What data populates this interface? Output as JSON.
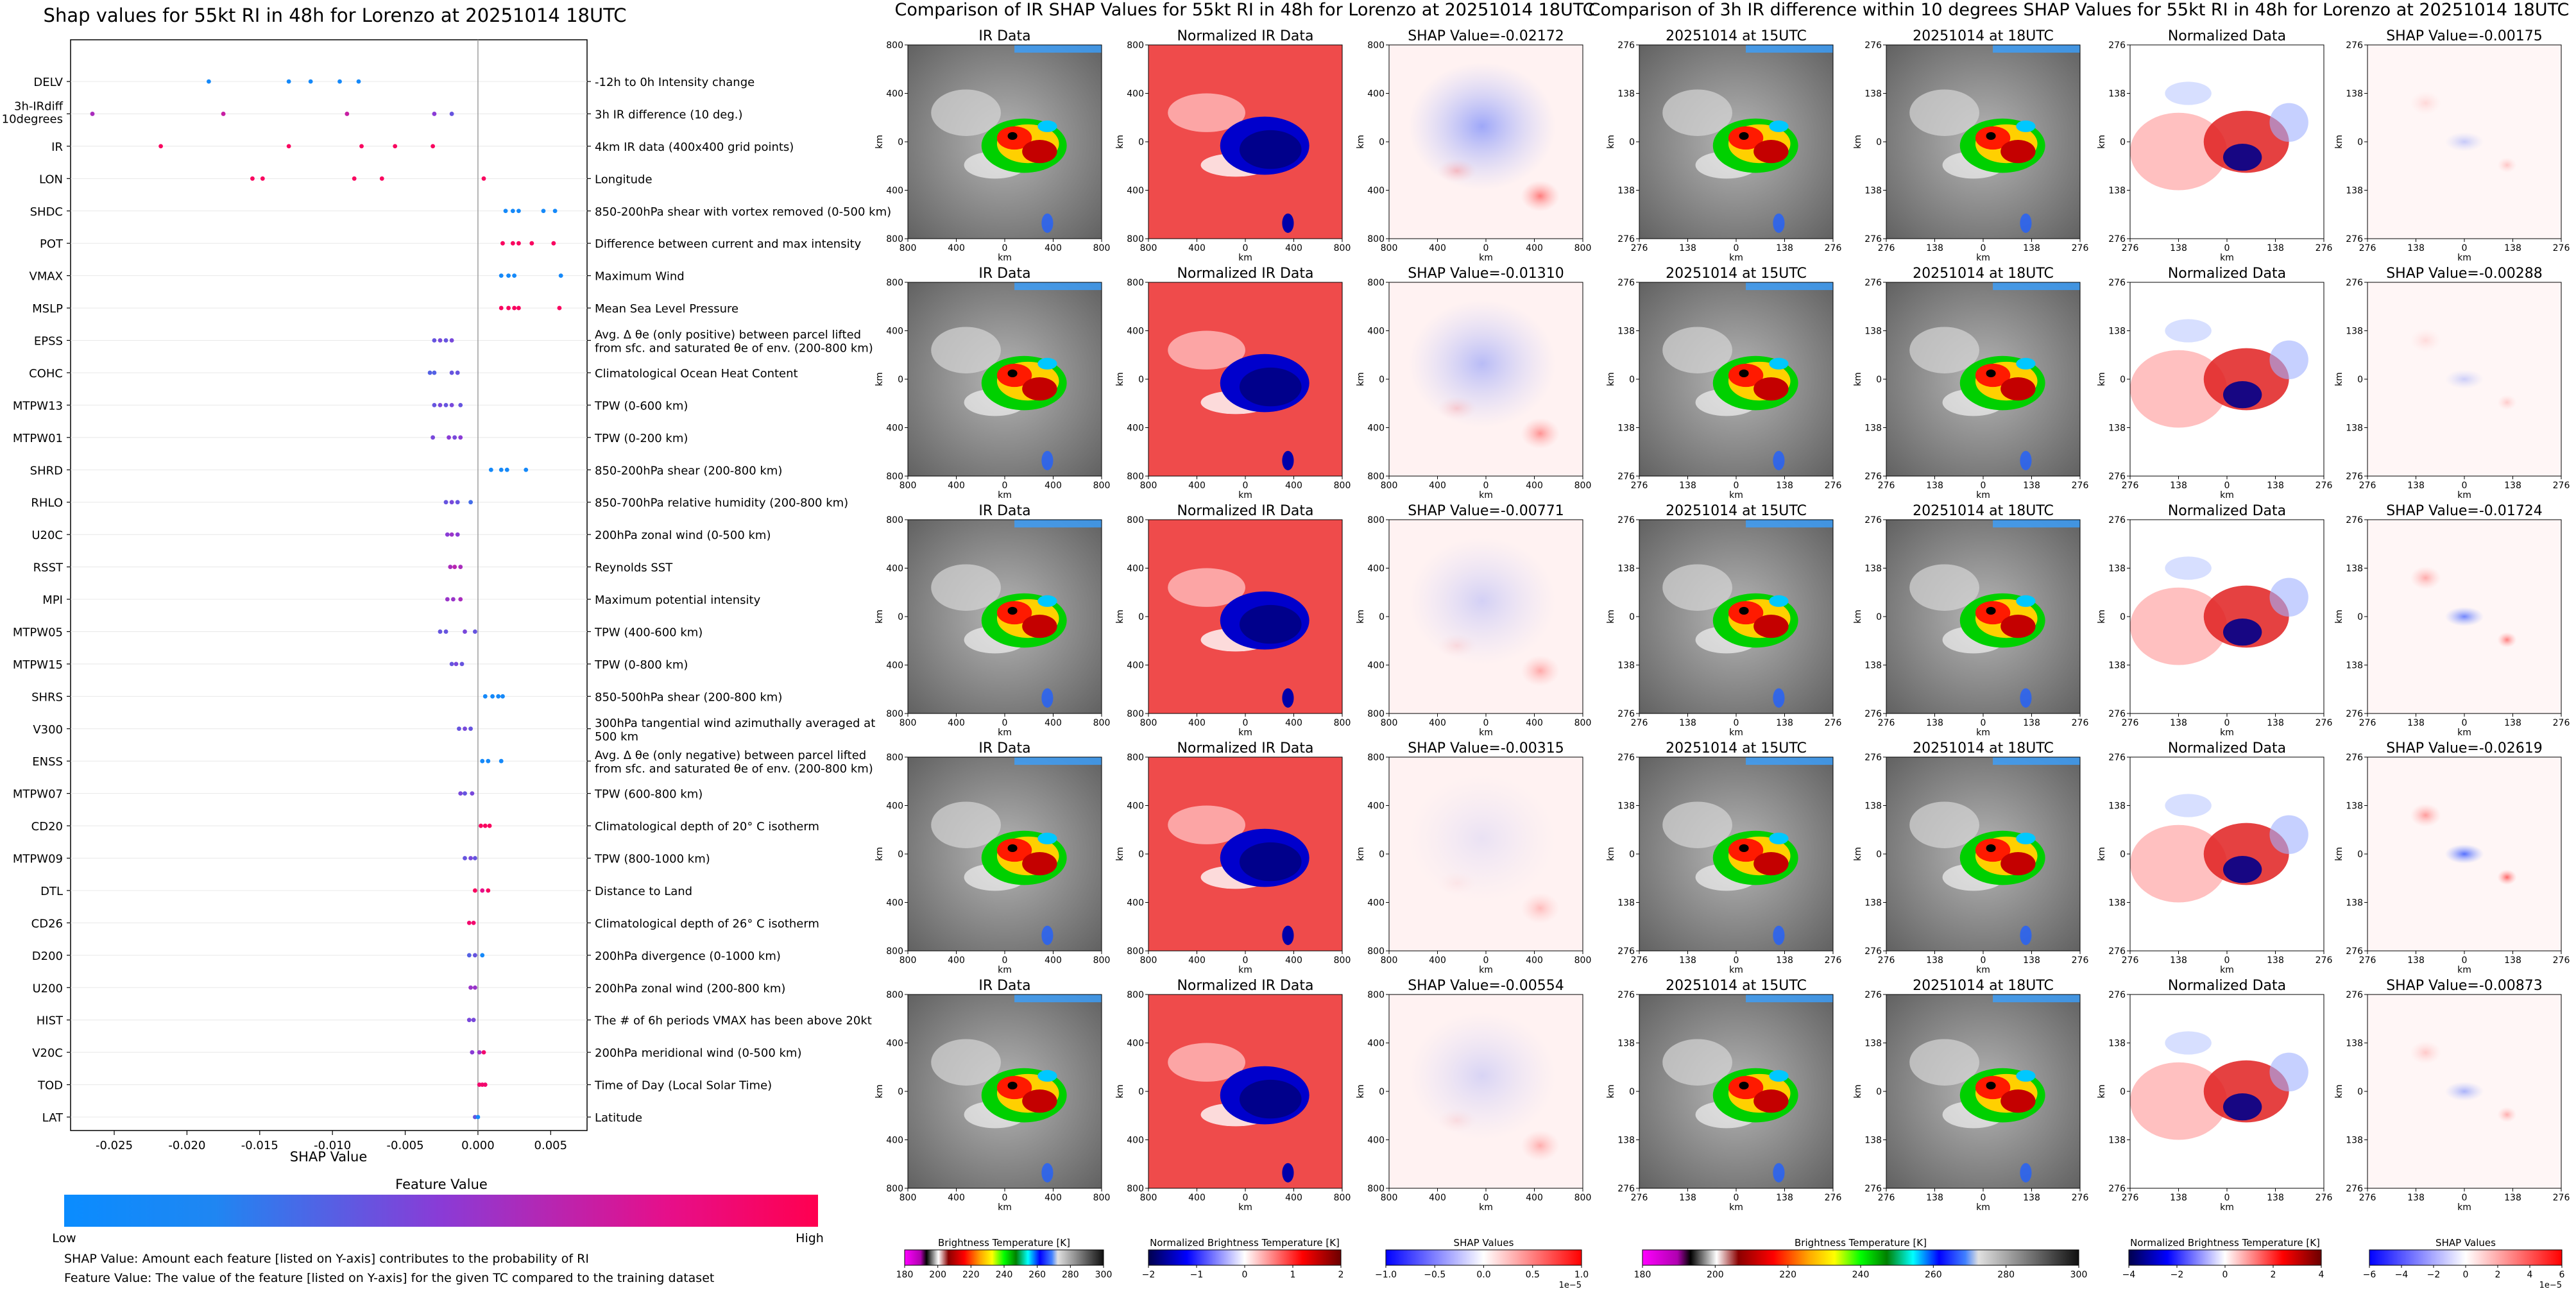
{
  "colors": {
    "low": "#1E88E5",
    "high": "#FF0052",
    "zero_line": "#9e9e9e",
    "panel_gray": "#7a7a7a",
    "norm_red": "#ef4b4b",
    "storm_blue": "#00008b"
  },
  "chart_data": [
    {
      "type": "scatter",
      "title": "Shap values for 55kt RI in 48h for Lorenzo at 20251014 18UTC",
      "xlabel": "SHAP Value",
      "xlim": [
        -0.028,
        0.0075
      ],
      "x_ticks": [
        "-0.025",
        "-0.020",
        "-0.015",
        "-0.010",
        "-0.005",
        "0.000",
        "0.005"
      ],
      "x_tick_values": [
        -0.025,
        -0.02,
        -0.015,
        -0.01,
        -0.005,
        0.0,
        0.005
      ],
      "features": [
        {
          "name": "DELV",
          "desc": "-12h to 0h Intensity change",
          "shap": [
            -0.0185,
            -0.013,
            -0.0115,
            -0.0095,
            -0.0082
          ],
          "fv": [
            0.1,
            0.1,
            0.1,
            0.1,
            0.1
          ]
        },
        {
          "name": "3h-IRdiff 10degrees",
          "desc": "3h IR difference (10 deg.)",
          "shap": [
            -0.0265,
            -0.0175,
            -0.009,
            -0.003,
            -0.0018
          ],
          "fv": [
            0.6,
            0.7,
            0.7,
            0.5,
            0.4
          ]
        },
        {
          "name": "IR",
          "desc": "4km IR data (400x400 grid points)",
          "shap": [
            -0.0218,
            -0.013,
            -0.008,
            -0.0057,
            -0.0031
          ],
          "fv": [
            0.95,
            0.95,
            0.95,
            0.95,
            0.95
          ]
        },
        {
          "name": "LON",
          "desc": "Longitude",
          "shap": [
            -0.0155,
            -0.0148,
            -0.0085,
            -0.0066,
            0.0004
          ],
          "fv": [
            0.95,
            0.95,
            0.95,
            0.95,
            0.95
          ]
        },
        {
          "name": "SHDC",
          "desc": "850-200hPa shear with vortex removed (0-500 km)",
          "shap": [
            0.0019,
            0.0024,
            0.0028,
            0.0045,
            0.0053
          ],
          "fv": [
            0.1,
            0.1,
            0.1,
            0.1,
            0.1
          ]
        },
        {
          "name": "POT",
          "desc": "Difference between current and max intensity",
          "shap": [
            0.0017,
            0.0024,
            0.0028,
            0.0037,
            0.0052
          ],
          "fv": [
            0.95,
            0.95,
            0.95,
            0.95,
            0.95
          ]
        },
        {
          "name": "VMAX",
          "desc": "Maximum Wind",
          "shap": [
            0.0016,
            0.0021,
            0.0025,
            0.0057
          ],
          "fv": [
            0.1,
            0.1,
            0.1,
            0.1
          ]
        },
        {
          "name": "MSLP",
          "desc": "Mean Sea Level Pressure",
          "shap": [
            0.0016,
            0.0021,
            0.0025,
            0.0028,
            0.0056
          ],
          "fv": [
            0.95,
            0.95,
            0.95,
            0.95,
            0.95
          ]
        },
        {
          "name": "EPSS",
          "desc": "Avg. Δ θe (only positive) between parcel lifted from sfc. and saturated θe of env. (200-800 km)",
          "shap": [
            -0.003,
            -0.0026,
            -0.0022,
            -0.0018
          ],
          "fv": [
            0.4,
            0.45,
            0.4,
            0.45
          ]
        },
        {
          "name": "COHC",
          "desc": "Climatological Ocean Heat Content",
          "shap": [
            -0.0033,
            -0.003,
            -0.0018,
            -0.0014
          ],
          "fv": [
            0.35,
            0.35,
            0.4,
            0.4
          ]
        },
        {
          "name": "MTPW13",
          "desc": "TPW (0-600 km)",
          "shap": [
            -0.003,
            -0.0026,
            -0.0022,
            -0.0018,
            -0.0012
          ],
          "fv": [
            0.4,
            0.45,
            0.4,
            0.45,
            0.4
          ]
        },
        {
          "name": "MTPW01",
          "desc": "TPW (0-200 km)",
          "shap": [
            -0.0031,
            -0.002,
            -0.0016,
            -0.0012
          ],
          "fv": [
            0.45,
            0.5,
            0.45,
            0.5
          ]
        },
        {
          "name": "SHRD",
          "desc": "850-200hPa shear (200-800 km)",
          "shap": [
            0.0009,
            0.0016,
            0.002,
            0.0033
          ],
          "fv": [
            0.1,
            0.1,
            0.1,
            0.1
          ]
        },
        {
          "name": "RHLO",
          "desc": "850-700hPa relative humidity (200-800 km)",
          "shap": [
            -0.0022,
            -0.0018,
            -0.0014,
            -0.0005
          ],
          "fv": [
            0.4,
            0.45,
            0.4,
            0.3
          ]
        },
        {
          "name": "U20C",
          "desc": "200hPa zonal wind (0-500 km)",
          "shap": [
            -0.0021,
            -0.0018,
            -0.0014
          ],
          "fv": [
            0.5,
            0.55,
            0.5
          ]
        },
        {
          "name": "RSST",
          "desc": "Reynolds SST",
          "shap": [
            -0.0019,
            -0.0016,
            -0.0012
          ],
          "fv": [
            0.6,
            0.65,
            0.6
          ]
        },
        {
          "name": "MPI",
          "desc": "Maximum potential intensity",
          "shap": [
            -0.0021,
            -0.0017,
            -0.0012
          ],
          "fv": [
            0.55,
            0.55,
            0.6
          ]
        },
        {
          "name": "MTPW05",
          "desc": "TPW (400-600 km)",
          "shap": [
            -0.0026,
            -0.0022,
            -0.0009,
            -0.0002
          ],
          "fv": [
            0.4,
            0.4,
            0.45,
            0.4
          ]
        },
        {
          "name": "MTPW15",
          "desc": "TPW (0-800 km)",
          "shap": [
            -0.0018,
            -0.0015,
            -0.0011
          ],
          "fv": [
            0.4,
            0.45,
            0.4
          ]
        },
        {
          "name": "SHRS",
          "desc": "850-500hPa shear (200-800 km)",
          "shap": [
            0.0005,
            0.001,
            0.0014,
            0.0017
          ],
          "fv": [
            0.1,
            0.1,
            0.1,
            0.1
          ]
        },
        {
          "name": "V300",
          "desc": "300hPa tangential wind azimuthally averaged at 500 km",
          "shap": [
            -0.0013,
            -0.0009,
            -0.0005
          ],
          "fv": [
            0.4,
            0.45,
            0.4
          ]
        },
        {
          "name": "ENSS",
          "desc": "Avg. Δ θe (only negative) between parcel lifted from sfc. and saturated θe of env. (200-800 km)",
          "shap": [
            0.0003,
            0.0007,
            0.0016
          ],
          "fv": [
            0.1,
            0.1,
            0.1
          ]
        },
        {
          "name": "MTPW07",
          "desc": "TPW (600-800 km)",
          "shap": [
            -0.0012,
            -0.0009,
            -0.0004
          ],
          "fv": [
            0.45,
            0.4,
            0.45
          ]
        },
        {
          "name": "CD20",
          "desc": "Climatological depth of 20° C isotherm",
          "shap": [
            0.0002,
            0.0005,
            0.0008
          ],
          "fv": [
            0.95,
            0.95,
            0.95
          ]
        },
        {
          "name": "MTPW09",
          "desc": "TPW (800-1000 km)",
          "shap": [
            -0.0009,
            -0.0005,
            -0.0002
          ],
          "fv": [
            0.4,
            0.45,
            0.4
          ]
        },
        {
          "name": "DTL",
          "desc": "Distance to Land",
          "shap": [
            -0.0002,
            0.0003,
            0.0007
          ],
          "fv": [
            0.95,
            0.8,
            0.95
          ]
        },
        {
          "name": "CD26",
          "desc": "Climatological depth of 26° C isotherm",
          "shap": [
            -0.0006,
            -0.0003
          ],
          "fv": [
            0.9,
            0.9
          ]
        },
        {
          "name": "D200",
          "desc": "200hPa divergence (0-1000 km)",
          "shap": [
            -0.0006,
            -0.0002,
            0.0003
          ],
          "fv": [
            0.35,
            0.4,
            0.1
          ]
        },
        {
          "name": "U200",
          "desc": "200hPa zonal wind (200-800 km)",
          "shap": [
            -0.0005,
            -0.0002
          ],
          "fv": [
            0.55,
            0.55
          ]
        },
        {
          "name": "HIST",
          "desc": "The # of 6h periods VMAX has been above 20kt",
          "shap": [
            -0.0006,
            -0.0003
          ],
          "fv": [
            0.45,
            0.45
          ]
        },
        {
          "name": "V20C",
          "desc": "200hPa meridional wind (0-500 km)",
          "shap": [
            -0.0004,
            0.0001,
            0.0004
          ],
          "fv": [
            0.5,
            0.55,
            0.9
          ]
        },
        {
          "name": "TOD",
          "desc": "Time of Day (Local Solar Time)",
          "shap": [
            0.0001,
            0.0003,
            0.0005
          ],
          "fv": [
            0.9,
            0.9,
            0.9
          ]
        },
        {
          "name": "LAT",
          "desc": "Latitude",
          "shap": [
            -0.0002,
            0.0
          ],
          "fv": [
            0.4,
            0.1
          ]
        }
      ],
      "colorbar": {
        "title": "Feature Value",
        "low": "Low",
        "high": "High"
      },
      "notes": [
        "SHAP Value: Amount each feature [listed on Y-axis] contributes to the probability of RI",
        "Feature Value: The value of the feature [listed on Y-axis] for the given TC compared to the training dataset"
      ]
    },
    {
      "type": "heatmap",
      "title": "Comparison of IR SHAP Values for 55kt RI in 48h for Lorenzo at 20251014 18UTC",
      "col_titles": [
        "IR Data",
        "Normalized IR Data"
      ],
      "shap_values": [
        "SHAP Value=-0.02172",
        "SHAP Value=-0.01310",
        "SHAP Value=-0.00771",
        "SHAP Value=-0.00315",
        "SHAP Value=-0.00554"
      ],
      "shap_strength": [
        0.55,
        0.4,
        0.25,
        0.12,
        0.22
      ],
      "x_ticks": [
        "800",
        "400",
        "0",
        "400",
        "800"
      ],
      "y_ticks": [
        "800",
        "400",
        "0",
        "400",
        "800"
      ],
      "axis_label": "km",
      "colorbars": [
        {
          "label": "Brightness Temperature [K]",
          "ticks": [
            "180",
            "200",
            "220",
            "240",
            "260",
            "280",
            "300"
          ]
        },
        {
          "label": "Normalized Brightness Temperature [K]",
          "ticks": [
            "−2",
            "−1",
            "0",
            "1",
            "2"
          ]
        },
        {
          "label": "SHAP Values",
          "ticks": [
            "−1.0",
            "−0.5",
            "0.0",
            "0.5",
            "1.0"
          ],
          "exponent": "1e−5"
        }
      ]
    },
    {
      "type": "heatmap",
      "title": "Comparison of 3h IR difference within 10 degrees SHAP Values for 55kt RI in 48h for Lorenzo at 20251014 18UTC",
      "col_titles": [
        "20251014 at 15UTC",
        "20251014 at 18UTC",
        "Normalized Data"
      ],
      "shap_values": [
        "SHAP Value=-0.00175",
        "SHAP Value=-0.00288",
        "SHAP Value=-0.01724",
        "SHAP Value=-0.02619",
        "SHAP Value=-0.00873"
      ],
      "shap_strength": [
        0.2,
        0.18,
        0.5,
        0.6,
        0.3
      ],
      "x_ticks": [
        "276",
        "138",
        "0",
        "138",
        "276"
      ],
      "y_ticks": [
        "276",
        "138",
        "0",
        "138",
        "276"
      ],
      "axis_label": "km",
      "colorbars": [
        {
          "label": "Brightness Temperature [K]",
          "ticks": [
            "180",
            "200",
            "220",
            "240",
            "260",
            "280",
            "300"
          ]
        },
        {
          "label": "Normalized Brightness Temperature [K]",
          "ticks": [
            "−4",
            "−2",
            "0",
            "2",
            "4"
          ]
        },
        {
          "label": "SHAP Values",
          "ticks": [
            "−6",
            "−4",
            "−2",
            "0",
            "2",
            "4",
            "6"
          ],
          "exponent": "1e−5"
        }
      ]
    }
  ]
}
